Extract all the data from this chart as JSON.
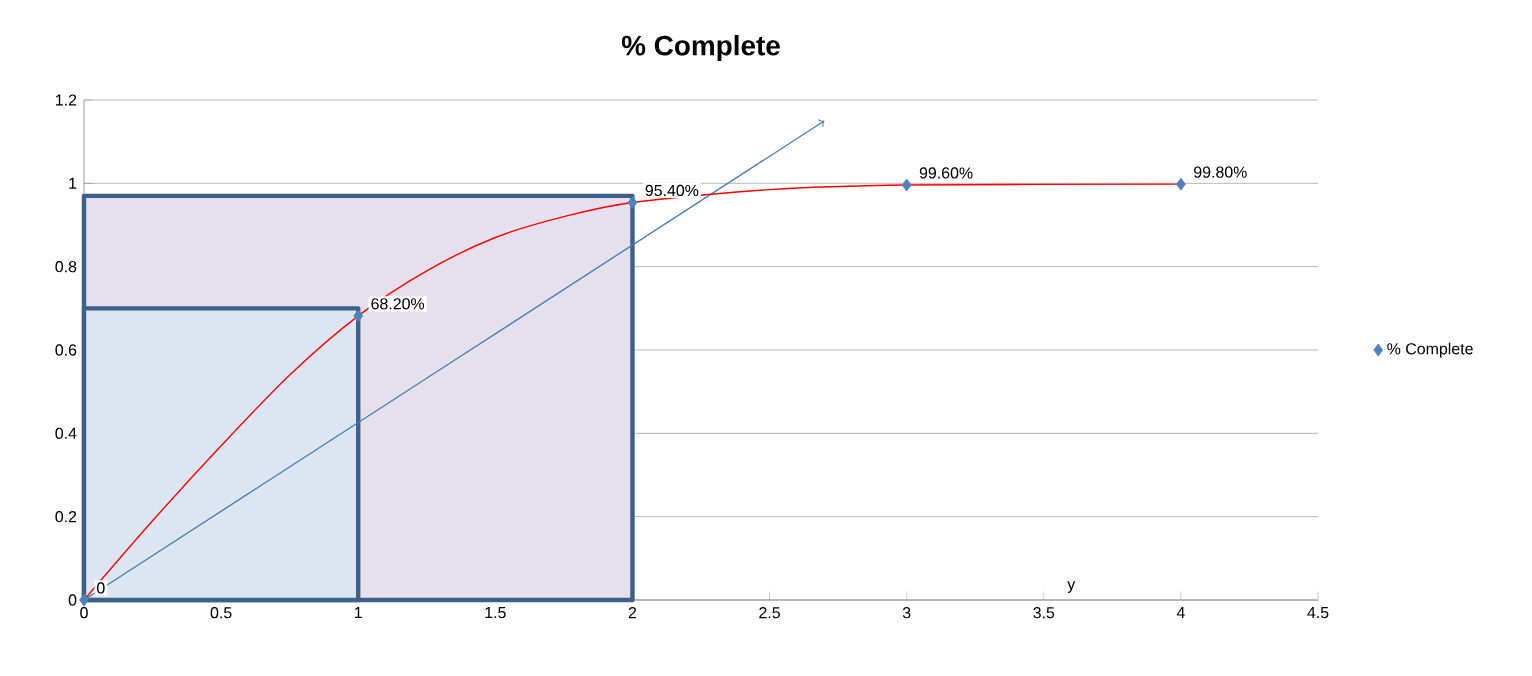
{
  "chart_data": {
    "type": "scatter",
    "title": "% Complete",
    "xlim": [
      0,
      4.5
    ],
    "xticks": [
      0,
      0.5,
      1,
      1.5,
      2,
      2.5,
      3,
      3.5,
      4,
      4.5
    ],
    "ylim": [
      0,
      1.2
    ],
    "yticks": [
      0,
      0.2,
      0.4,
      0.6,
      0.8,
      1,
      1.2
    ],
    "grid": "y",
    "legend": "right",
    "annotations": [
      "y"
    ],
    "series": [
      {
        "type": "area",
        "color": "#e6e0ec",
        "marker": "none",
        "x": [
          0,
          2
        ],
        "values": [
          0.97,
          0.97
        ]
      },
      {
        "type": "area",
        "color": "#dce6f2",
        "marker": "none",
        "x": [
          0,
          1
        ],
        "values": [
          0.7,
          0.7
        ]
      },
      {
        "type": "line",
        "color": "#4a7ebb",
        "x": [
          0,
          2.7
        ],
        "values": [
          0,
          1.15
        ]
      },
      {
        "type": "line",
        "color": "#ff0000",
        "marker": "none",
        "x": [
          0,
          0.25,
          0.5,
          0.75,
          1,
          1.25,
          1.5,
          1.75,
          2,
          2.5,
          3,
          4
        ],
        "values": [
          0,
          0.19,
          0.37,
          0.54,
          0.682,
          0.79,
          0.87,
          0.92,
          0.954,
          0.985,
          0.996,
          0.998
        ]
      },
      {
        "name": "% Complete",
        "color": "#4f81bd",
        "marker": "diamond",
        "x": [
          0,
          1,
          2,
          3,
          4
        ],
        "values": [
          0,
          0.682,
          0.954,
          0.996,
          0.998
        ],
        "value_labels": [
          "0",
          "68.20%",
          "95.40%",
          "99.60%",
          "99.80%"
        ]
      }
    ]
  }
}
